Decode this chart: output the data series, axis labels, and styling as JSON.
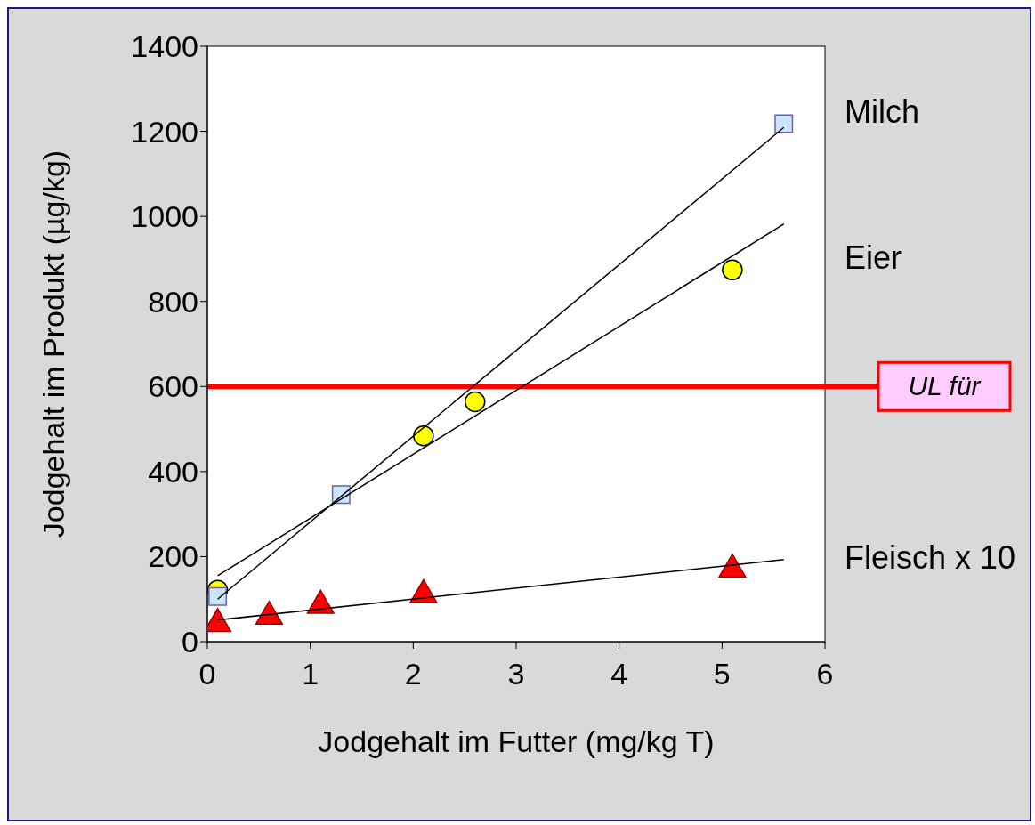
{
  "chart_data": {
    "type": "scatter",
    "xlabel": "Jodgehalt im Futter (mg/kg T)",
    "ylabel": "Jodgehalt im Produkt (µg/kg)",
    "xlim": [
      0,
      6
    ],
    "xticks": [
      0,
      1,
      2,
      3,
      4,
      5,
      6
    ],
    "ylim": [
      0,
      1400
    ],
    "yticks": [
      0,
      200,
      400,
      600,
      800,
      1000,
      1200,
      1400
    ],
    "series": [
      {
        "name": "Milch",
        "marker": "square",
        "color": "#cce5ff",
        "x": [
          0.1,
          1.3,
          5.6
        ],
        "values": [
          106,
          346,
          1218
        ]
      },
      {
        "name": "Eier",
        "marker": "circle",
        "color": "#ffff00",
        "x": [
          0.1,
          2.1,
          2.6,
          5.1
        ],
        "values": [
          121,
          484,
          564,
          874
        ]
      },
      {
        "name": "Fleisch x 10",
        "marker": "triangle",
        "color": "#ff0000",
        "x": [
          0.1,
          0.6,
          1.1,
          2.1,
          5.1
        ],
        "values": [
          42,
          59,
          85,
          110,
          170
        ]
      },
      {
        "type": "line",
        "color": "#000000",
        "x": [
          0.1,
          5.6
        ],
        "values": [
          100,
          1209
        ]
      },
      {
        "type": "line",
        "color": "#000000",
        "x": [
          0.1,
          5.6
        ],
        "values": [
          155,
          982
        ]
      },
      {
        "type": "line",
        "color": "#000000",
        "x": [
          0.1,
          5.6
        ],
        "values": [
          51,
          193
        ]
      }
    ],
    "ref_lines": [
      {
        "axis": "y",
        "value": 600,
        "label": "UL für",
        "color": "#ff0000"
      }
    ]
  }
}
